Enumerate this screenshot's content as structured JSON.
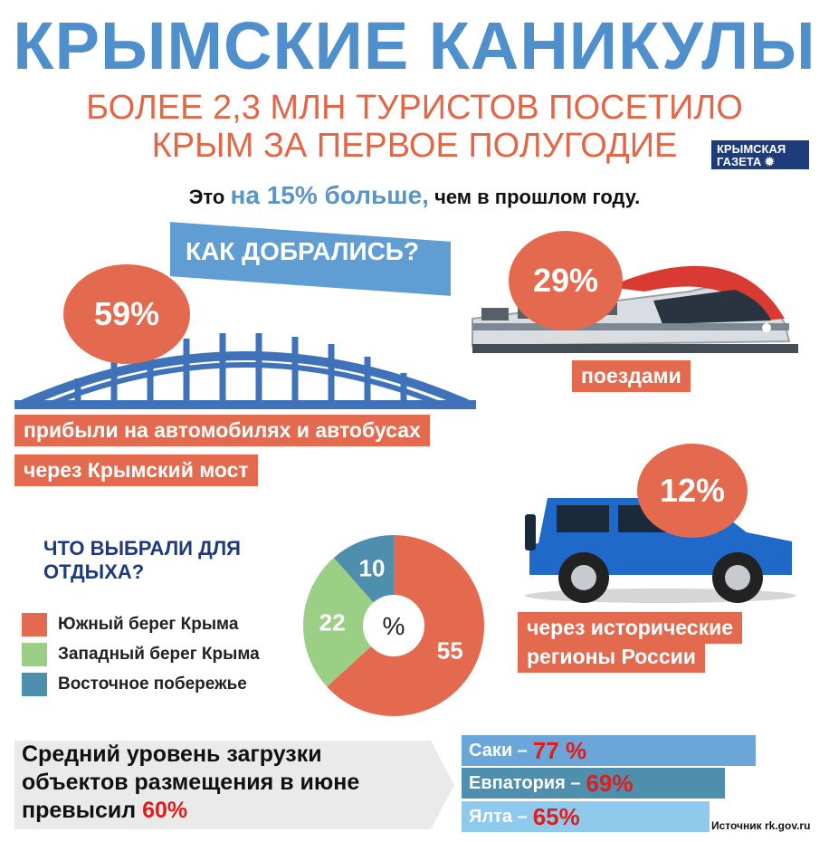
{
  "header": {
    "title": "КРЫМСКИЕ КАНИКУЛЫ",
    "subtitle_line1": "БОЛЕЕ 2,3 МЛН ТУРИСТОВ ПОСЕТИЛО",
    "subtitle_line2": "КРЫМ ЗА ПЕРВОЕ ПОЛУГОДИЕ",
    "intro_pre": "Это ",
    "intro_highlight": "на 15% больше,",
    "intro_post": " чем в прошлом году.",
    "logo_line1": "КРЫМСКАЯ",
    "logo_line2": "ГАЗЕТА"
  },
  "transport": {
    "heading": "КАК ДОБРАЛИСЬ?",
    "bridge_pct": "59%",
    "bridge_label1": "прибыли на автомобилях и автобусах",
    "bridge_label2": "через Крымский мост",
    "train_pct": "29%",
    "train_label": "поездами",
    "car_pct": "12%",
    "car_label1": "через исторические",
    "car_label2": "регионы России"
  },
  "chart_data": {
    "type": "pie",
    "title": "ЧТО ВЫБРАЛИ ДЛЯ ОТДЫХА?",
    "center_label": "%",
    "categories": [
      "Южный берег Крыма",
      "Западный берег Крыма",
      "Восточное побережье"
    ],
    "values": [
      55,
      22,
      10
    ],
    "colors": [
      "#e36a4f",
      "#9ccf86",
      "#4f8fae"
    ]
  },
  "occupancy": {
    "text_line1": "Средний уровень загрузки",
    "text_line2": "объектов размещения в июне",
    "text_line3": "превысил ",
    "threshold": "60%",
    "bars": [
      {
        "city": "Саки – ",
        "pct": "77 %",
        "value": 77,
        "color": "#6aa7d8"
      },
      {
        "city": "Евпатория – ",
        "pct": "69%",
        "value": 69,
        "color": "#4f8fae"
      },
      {
        "city": "Ялта – ",
        "pct": "65%",
        "value": 65,
        "color": "#8fcaec"
      }
    ]
  },
  "source": "Источник rk.gov.ru"
}
